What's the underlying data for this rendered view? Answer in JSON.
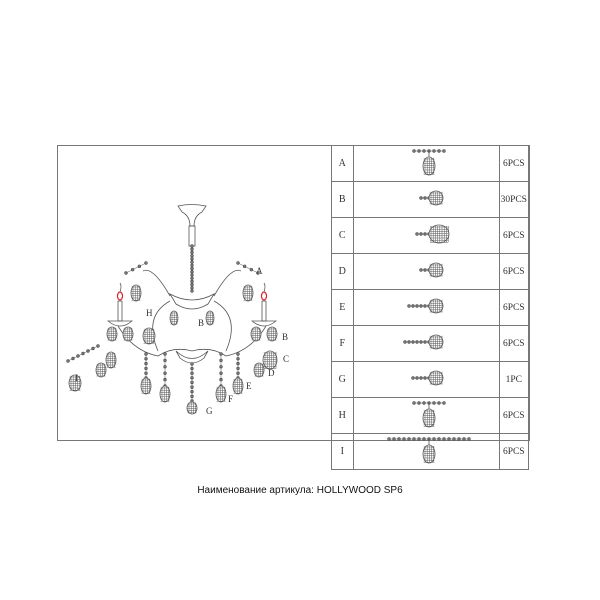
{
  "diagram": {
    "callouts": [
      "A",
      "B",
      "B",
      "C",
      "D",
      "E",
      "F",
      "G",
      "H",
      "I"
    ]
  },
  "parts_table": {
    "rows": [
      {
        "label": "A",
        "qty": "6PCS",
        "icon": "bead-chain-drop-pendant-t"
      },
      {
        "label": "B",
        "qty": "30PCS",
        "icon": "bead-small-drop"
      },
      {
        "label": "C",
        "qty": "6PCS",
        "icon": "bead-large-drop"
      },
      {
        "label": "D",
        "qty": "6PCS",
        "icon": "bead-medium-drop"
      },
      {
        "label": "E",
        "qty": "6PCS",
        "icon": "bead-chain-drop"
      },
      {
        "label": "F",
        "qty": "6PCS",
        "icon": "bead-long-chain-drop"
      },
      {
        "label": "G",
        "qty": "1PC",
        "icon": "bead-chain-ball"
      },
      {
        "label": "H",
        "qty": "6PCS",
        "icon": "bead-chain-drop-pendant-t"
      },
      {
        "label": "I",
        "qty": "6PCS",
        "icon": "bead-long-chain-drop-pendant-t"
      }
    ]
  },
  "caption": "Наименование артикула: HOLLYWOOD SP6",
  "colors": {
    "line": "#555555",
    "bulb": "#e0202a"
  }
}
